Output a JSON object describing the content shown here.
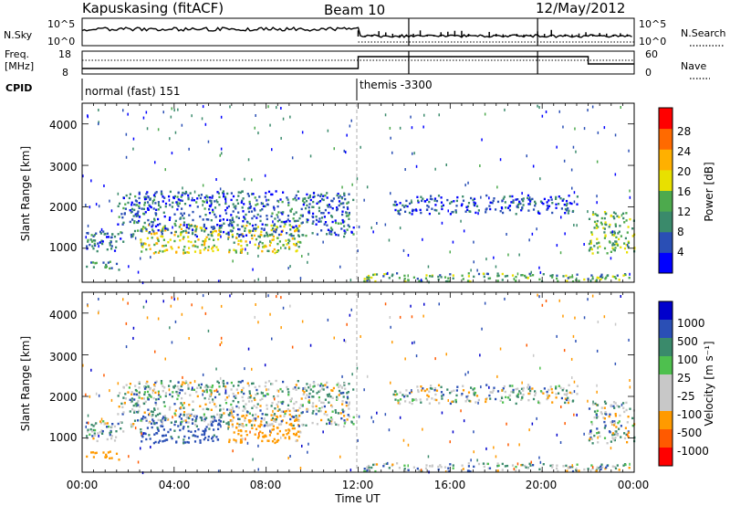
{
  "header": {
    "radar": "Kapuskasing (fitACF)",
    "beam": "Beam 10",
    "date": "12/May/2012"
  },
  "top_panels": {
    "nsky_label": "N.Sky",
    "nsky_ticks": [
      "10^5",
      "10^0"
    ],
    "nsky_right_ticks": [
      "10^5",
      "10^0"
    ],
    "nsearch_label": "N.Search",
    "freq_label_1": "Freq.",
    "freq_label_2": "[MHz]",
    "freq_ticks": [
      "18",
      "8"
    ],
    "nave_ticks": [
      "60",
      "0"
    ],
    "nave_label": "Nave",
    "cpid_label": "CPID",
    "cpid_modes": [
      {
        "name": "normal (fast) 151",
        "start": 0,
        "end": 12
      },
      {
        "name": "themis -3300",
        "start": 12,
        "end": 24
      }
    ]
  },
  "x_axis": {
    "ticks": [
      "00:00",
      "04:00",
      "08:00",
      "12:00",
      "16:00",
      "20:00",
      "00:00"
    ],
    "label": "Time UT"
  },
  "panels": [
    {
      "name": "power",
      "ylabel": "Slant Range [km]",
      "yticks": [
        "1000",
        "2000",
        "3000",
        "4000"
      ],
      "colorbar_label": "Power [dB]",
      "colorbar_ticks": [
        "4",
        "8",
        "12",
        "16",
        "20",
        "24",
        "28"
      ]
    },
    {
      "name": "velocity",
      "ylabel": "Slant Range [km]",
      "yticks": [
        "1000",
        "2000",
        "3000",
        "4000"
      ],
      "colorbar_label": "Velocity [m s⁻¹]",
      "colorbar_ticks": [
        "1000",
        "500",
        "100",
        "25",
        "-25",
        "-100",
        "-500",
        "-1000"
      ]
    }
  ],
  "colors": {
    "power_scale": [
      "#0000ff",
      "#2a4fb5",
      "#3a8a6b",
      "#4daa4d",
      "#e8e000",
      "#ffb000",
      "#ff6a00",
      "#ff0000"
    ],
    "velocity_scale": [
      "#0000cc",
      "#2a4fb5",
      "#3a8a6b",
      "#4ec04e",
      "#c8c8c8",
      "#c8c8c8",
      "#ff9a00",
      "#ff5a00",
      "#ff0000"
    ]
  },
  "chart_data": {
    "type": "heatmap",
    "x_unit": "hours UT",
    "xlim": [
      0,
      24
    ],
    "ylim_km": [
      180,
      4500
    ],
    "power_scale_db": [
      0,
      32
    ],
    "velocity_scale_ms": [
      -1000,
      1000
    ],
    "scatter_regions": [
      {
        "t0": 0.0,
        "t1": 1.8,
        "r0": 950,
        "r1": 1450,
        "power": 8,
        "velocity": 0
      },
      {
        "t0": 0.1,
        "t1": 1.6,
        "r0": 500,
        "r1": 700,
        "power": 10,
        "velocity": -300
      },
      {
        "t0": 2.5,
        "t1": 6.0,
        "r0": 900,
        "r1": 1600,
        "power": 18,
        "velocity": 200
      },
      {
        "t0": 6.3,
        "t1": 9.5,
        "r0": 900,
        "r1": 1600,
        "power": 17,
        "velocity": -200
      },
      {
        "t0": 1.5,
        "t1": 11.8,
        "r0": 1300,
        "r1": 2400,
        "power": 7,
        "velocity": 0
      },
      {
        "t0": 13.5,
        "t1": 21.5,
        "r0": 1850,
        "r1": 2300,
        "power": 6,
        "velocity": 0
      },
      {
        "t0": 12.0,
        "t1": 24.0,
        "r0": 220,
        "r1": 420,
        "power": 13,
        "velocity": 0
      },
      {
        "t0": 22.0,
        "t1": 24.0,
        "r0": 900,
        "r1": 1900,
        "power": 14,
        "velocity": 0
      }
    ]
  }
}
